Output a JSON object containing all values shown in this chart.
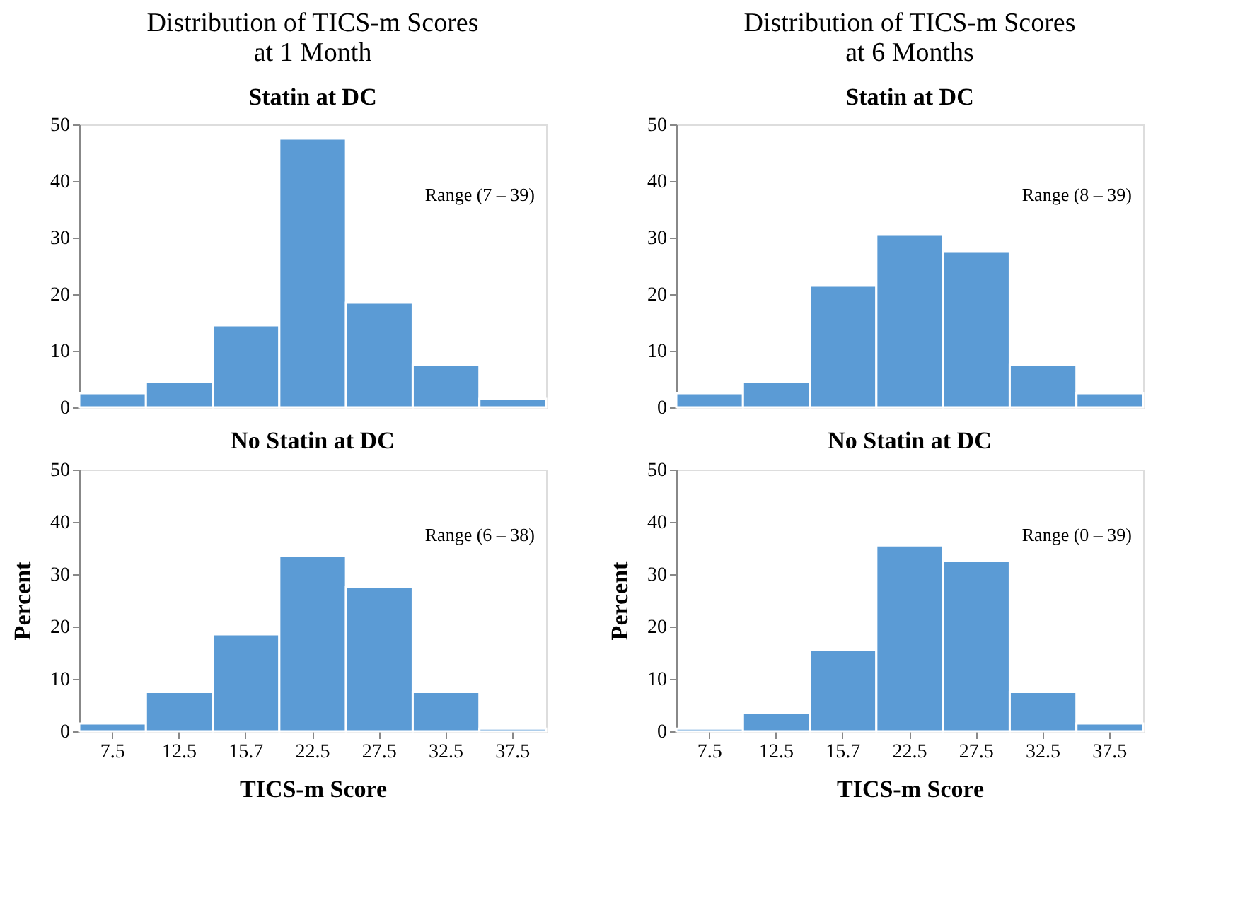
{
  "chart_data": [
    {
      "type": "bar",
      "title": "Distribution of TICS-m Scores\nat 1 Month",
      "subtitle": "Statin at DC",
      "categories": [
        "7.5",
        "12.5",
        "15.7",
        "22.5",
        "27.5",
        "32.5",
        "37.5"
      ],
      "values": [
        2.5,
        4.5,
        14.5,
        47.5,
        18.5,
        7.5,
        1.5
      ],
      "color": "#5b9bd5",
      "ylim": [
        0,
        50
      ],
      "yticks": [
        0,
        10,
        20,
        30,
        40,
        50
      ],
      "grid": false,
      "tick_labels": "y",
      "annotations": [
        "Range (7 – 39)"
      ]
    },
    {
      "type": "bar",
      "title": "No Statin at DC",
      "xlabel": "TICS-m Score",
      "ylabel": "Percent",
      "categories": [
        "7.5",
        "12.5",
        "15.7",
        "22.5",
        "27.5",
        "32.5",
        "37.5"
      ],
      "values": [
        1.5,
        7.5,
        18.5,
        33.5,
        27.5,
        7.5,
        0.5
      ],
      "color": "#5b9bd5",
      "ylim": [
        0,
        50
      ],
      "yticks": [
        0,
        10,
        20,
        30,
        40,
        50
      ],
      "grid": false,
      "annotations": [
        "Range (6 – 38)"
      ]
    },
    {
      "type": "bar",
      "title": "Distribution of TICS-m Scores\nat 6 Months",
      "subtitle": "Statin at DC",
      "categories": [
        "7.5",
        "12.5",
        "15.7",
        "22.5",
        "27.5",
        "32.5",
        "37.5"
      ],
      "values": [
        2.5,
        4.5,
        21.5,
        30.5,
        27.5,
        7.5,
        2.5
      ],
      "color": "#5b9bd5",
      "ylim": [
        0,
        50
      ],
      "yticks": [
        0,
        10,
        20,
        30,
        40,
        50
      ],
      "grid": false,
      "tick_labels": "y",
      "annotations": [
        "Range (8 – 39)"
      ]
    },
    {
      "type": "bar",
      "title": "No Statin at DC",
      "xlabel": "TICS-m Score",
      "ylabel": "Percent",
      "categories": [
        "7.5",
        "12.5",
        "15.7",
        "22.5",
        "27.5",
        "32.5",
        "37.5"
      ],
      "values": [
        0.5,
        3.5,
        15.5,
        35.5,
        32.5,
        7.5,
        1.5
      ],
      "color": "#5b9bd5",
      "ylim": [
        0,
        50
      ],
      "yticks": [
        0,
        10,
        20,
        30,
        40,
        50
      ],
      "grid": false,
      "annotations": [
        "Range (0 – 39)"
      ]
    }
  ]
}
